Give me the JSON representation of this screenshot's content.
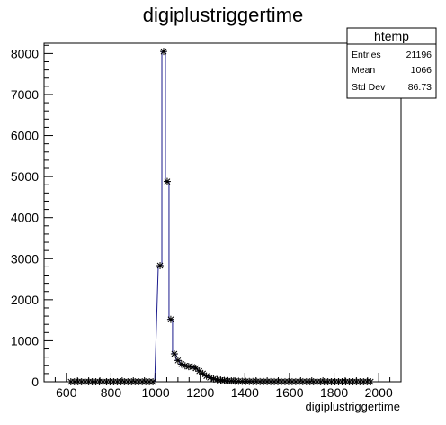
{
  "chart_data": {
    "type": "histogram",
    "title": "digiplustriggertime",
    "xlabel": "digiplustriggertime",
    "ylabel": "",
    "xlim": [
      500,
      2100
    ],
    "ylim": [
      0,
      8250
    ],
    "x_ticks": [
      600,
      800,
      1000,
      1200,
      1400,
      1600,
      1800,
      2000
    ],
    "y_ticks": [
      0,
      1000,
      2000,
      3000,
      4000,
      5000,
      6000,
      7000,
      8000
    ],
    "bin_width": 16,
    "colors": {
      "line": "#1a1a8c",
      "marker": "#000000"
    },
    "bins": [
      {
        "x": 620,
        "y": 0
      },
      {
        "x": 636,
        "y": 0
      },
      {
        "x": 652,
        "y": 0
      },
      {
        "x": 668,
        "y": 0
      },
      {
        "x": 684,
        "y": 0
      },
      {
        "x": 700,
        "y": 0
      },
      {
        "x": 716,
        "y": 0
      },
      {
        "x": 732,
        "y": 0
      },
      {
        "x": 748,
        "y": 0
      },
      {
        "x": 764,
        "y": 0
      },
      {
        "x": 780,
        "y": 0
      },
      {
        "x": 796,
        "y": 0
      },
      {
        "x": 812,
        "y": 0
      },
      {
        "x": 828,
        "y": 0
      },
      {
        "x": 844,
        "y": 0
      },
      {
        "x": 860,
        "y": 0
      },
      {
        "x": 876,
        "y": 0
      },
      {
        "x": 892,
        "y": 0
      },
      {
        "x": 908,
        "y": 0
      },
      {
        "x": 924,
        "y": 0
      },
      {
        "x": 940,
        "y": 0
      },
      {
        "x": 956,
        "y": 0
      },
      {
        "x": 972,
        "y": 0
      },
      {
        "x": 988,
        "y": 0
      },
      {
        "x": 1020,
        "y": 2830
      },
      {
        "x": 1036,
        "y": 8050
      },
      {
        "x": 1052,
        "y": 4880
      },
      {
        "x": 1068,
        "y": 1520
      },
      {
        "x": 1084,
        "y": 680
      },
      {
        "x": 1100,
        "y": 520
      },
      {
        "x": 1116,
        "y": 430
      },
      {
        "x": 1132,
        "y": 390
      },
      {
        "x": 1148,
        "y": 370
      },
      {
        "x": 1164,
        "y": 360
      },
      {
        "x": 1180,
        "y": 330
      },
      {
        "x": 1196,
        "y": 260
      },
      {
        "x": 1212,
        "y": 200
      },
      {
        "x": 1228,
        "y": 140
      },
      {
        "x": 1244,
        "y": 100
      },
      {
        "x": 1260,
        "y": 70
      },
      {
        "x": 1276,
        "y": 50
      },
      {
        "x": 1292,
        "y": 40
      },
      {
        "x": 1308,
        "y": 30
      },
      {
        "x": 1324,
        "y": 25
      },
      {
        "x": 1340,
        "y": 20
      },
      {
        "x": 1356,
        "y": 15
      },
      {
        "x": 1372,
        "y": 12
      },
      {
        "x": 1388,
        "y": 10
      },
      {
        "x": 1404,
        "y": 8
      },
      {
        "x": 1420,
        "y": 6
      },
      {
        "x": 1436,
        "y": 5
      },
      {
        "x": 1452,
        "y": 4
      },
      {
        "x": 1468,
        "y": 3
      },
      {
        "x": 1484,
        "y": 3
      },
      {
        "x": 1500,
        "y": 2
      },
      {
        "x": 1516,
        "y": 2
      },
      {
        "x": 1532,
        "y": 2
      },
      {
        "x": 1548,
        "y": 1
      },
      {
        "x": 1564,
        "y": 1
      },
      {
        "x": 1580,
        "y": 1
      },
      {
        "x": 1596,
        "y": 1
      },
      {
        "x": 1612,
        "y": 1
      },
      {
        "x": 1628,
        "y": 1
      },
      {
        "x": 1644,
        "y": 1
      },
      {
        "x": 1660,
        "y": 1
      },
      {
        "x": 1676,
        "y": 1
      },
      {
        "x": 1692,
        "y": 0
      },
      {
        "x": 1708,
        "y": 0
      },
      {
        "x": 1724,
        "y": 0
      },
      {
        "x": 1740,
        "y": 0
      },
      {
        "x": 1756,
        "y": 0
      },
      {
        "x": 1772,
        "y": 0
      },
      {
        "x": 1788,
        "y": 0
      },
      {
        "x": 1804,
        "y": 0
      },
      {
        "x": 1820,
        "y": 0
      },
      {
        "x": 1836,
        "y": 0
      },
      {
        "x": 1852,
        "y": 0
      },
      {
        "x": 1868,
        "y": 0
      },
      {
        "x": 1884,
        "y": 0
      },
      {
        "x": 1900,
        "y": 0
      },
      {
        "x": 1916,
        "y": 0
      },
      {
        "x": 1932,
        "y": 0
      },
      {
        "x": 1948,
        "y": 0
      },
      {
        "x": 1964,
        "y": 0
      }
    ]
  },
  "stats": {
    "name": "htemp",
    "rows": [
      {
        "label": "Entries",
        "value": "21196"
      },
      {
        "label": "Mean",
        "value": "1066"
      },
      {
        "label": "Std Dev",
        "value": "86.73"
      }
    ]
  }
}
